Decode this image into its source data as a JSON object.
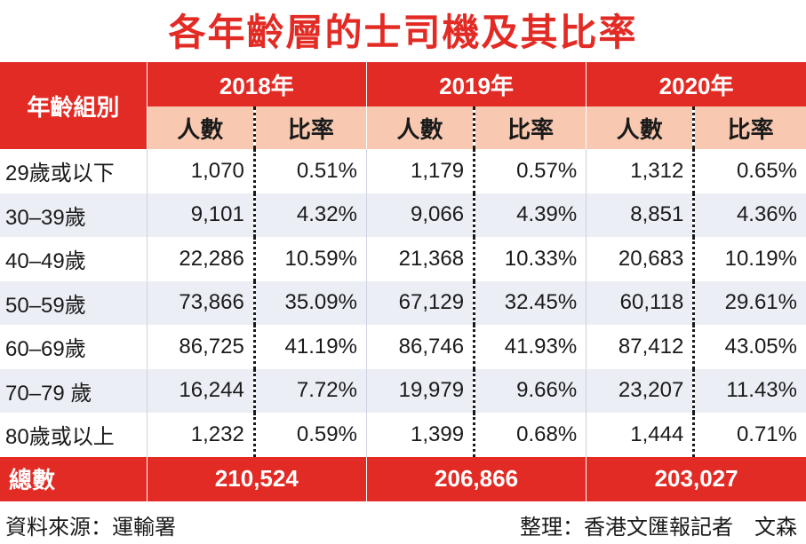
{
  "title": "各年齡層的士司機及其比率",
  "header": {
    "age_group": "年齡組別",
    "years": [
      "2018年",
      "2019年",
      "2020年"
    ],
    "count_label": "人數",
    "ratio_label": "比率"
  },
  "rows": [
    {
      "label": "29歲或以下",
      "cells": [
        "1,070",
        "0.51%",
        "1,179",
        "0.57%",
        "1,312",
        "0.65%"
      ]
    },
    {
      "label": "30–39歲",
      "cells": [
        "9,101",
        "4.32%",
        "9,066",
        "4.39%",
        "8,851",
        "4.36%"
      ]
    },
    {
      "label": "40–49歲",
      "cells": [
        "22,286",
        "10.59%",
        "21,368",
        "10.33%",
        "20,683",
        "10.19%"
      ]
    },
    {
      "label": "50–59歲",
      "cells": [
        "73,866",
        "35.09%",
        "67,129",
        "32.45%",
        "60,118",
        "29.61%"
      ]
    },
    {
      "label": "60–69歲",
      "cells": [
        "86,725",
        "41.19%",
        "86,746",
        "41.93%",
        "87,412",
        "43.05%"
      ]
    },
    {
      "label": "70–79 歲",
      "cells": [
        "16,244",
        "7.72%",
        "19,979",
        "9.66%",
        "23,207",
        "11.43%"
      ]
    },
    {
      "label": "80歲或以上",
      "cells": [
        "1,232",
        "0.59%",
        "1,399",
        "0.68%",
        "1,444",
        "0.71%"
      ]
    }
  ],
  "total": {
    "label": "總數",
    "values": [
      "210,524",
      "206,866",
      "203,027"
    ]
  },
  "footer": {
    "source": "資料來源：運輸署",
    "credit": "整理：香港文匯報記者　文森"
  },
  "colors": {
    "accent": "#e32b25",
    "subheader": "#f8c9b0",
    "alt_row": "#eceef6"
  },
  "chart_data": {
    "type": "table",
    "title": "各年齡層的士司機及其比率",
    "columns": [
      "年齡組別",
      "2018年 人數",
      "2018年 比率",
      "2019年 人數",
      "2019年 比率",
      "2020年 人數",
      "2020年 比率"
    ],
    "categories": [
      "29歲或以下",
      "30–39歲",
      "40–49歲",
      "50–59歲",
      "60–69歲",
      "70–79 歲",
      "80歲或以上"
    ],
    "series": [
      {
        "name": "2018年 人數",
        "values": [
          1070,
          9101,
          22286,
          73866,
          86725,
          16244,
          1232
        ]
      },
      {
        "name": "2018年 比率",
        "values": [
          0.51,
          4.32,
          10.59,
          35.09,
          41.19,
          7.72,
          0.59
        ]
      },
      {
        "name": "2019年 人數",
        "values": [
          1179,
          9066,
          21368,
          67129,
          86746,
          19979,
          1399
        ]
      },
      {
        "name": "2019年 比率",
        "values": [
          0.57,
          4.39,
          10.33,
          32.45,
          41.93,
          9.66,
          0.68
        ]
      },
      {
        "name": "2020年 人數",
        "values": [
          1312,
          8851,
          20683,
          60118,
          87412,
          23207,
          1444
        ]
      },
      {
        "name": "2020年 比率",
        "values": [
          0.65,
          4.36,
          10.19,
          29.61,
          43.05,
          11.43,
          0.71
        ]
      }
    ],
    "totals": [
      210524,
      206866,
      203027
    ]
  }
}
